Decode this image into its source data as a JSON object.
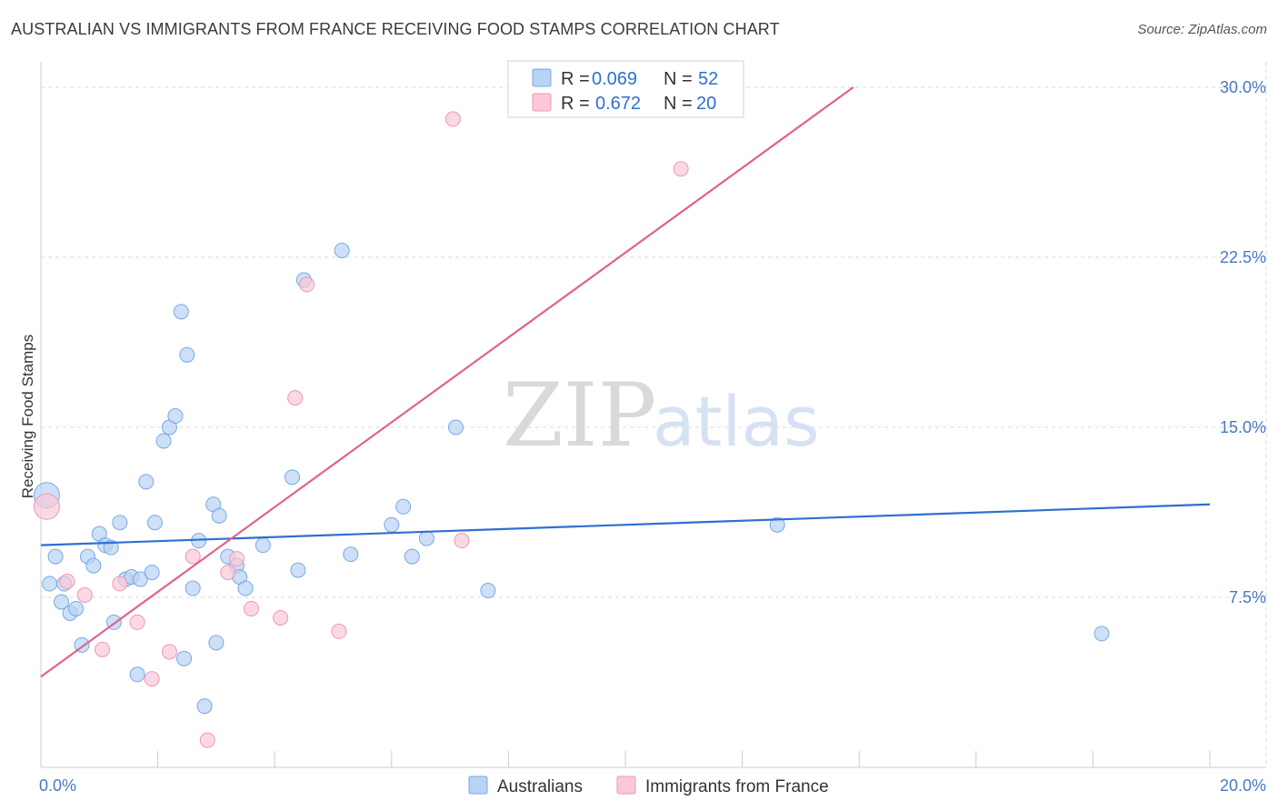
{
  "title": "AUSTRALIAN VS IMMIGRANTS FROM FRANCE RECEIVING FOOD STAMPS CORRELATION CHART",
  "source": "Source: ZipAtlas.com",
  "watermark": {
    "zip": "ZIP",
    "atlas": "atlas"
  },
  "colors": {
    "blue_fill": "#b8d3f5",
    "blue_stroke": "#7aa8e0",
    "blue_line": "#2e6fd4",
    "pink_fill": "#f9c9d8",
    "pink_stroke": "#ee97b3",
    "pink_line": "#e0628a",
    "grid": "#d8d8d8",
    "axis_text": "#4a78c4"
  },
  "legend": {
    "rows": [
      {
        "r_label": "R =",
        "r_value": "0.069",
        "n_label": "N =",
        "n_value": "52"
      },
      {
        "r_label": "R =",
        "r_value": "0.672",
        "n_label": "N =",
        "n_value": "20"
      }
    ]
  },
  "chart_data": {
    "type": "scatter",
    "ylabel": "Receiving Food Stamps",
    "xlim": [
      0,
      20
    ],
    "ylim": [
      0,
      30
    ],
    "x_ticks": [
      {
        "value": 0,
        "label": "0.0%"
      },
      {
        "value": 20,
        "label": "20.0%"
      }
    ],
    "y_ticks": [
      {
        "value": 7.5,
        "label": "7.5%"
      },
      {
        "value": 15,
        "label": "15.0%"
      },
      {
        "value": 22.5,
        "label": "22.5%"
      },
      {
        "value": 30,
        "label": "30.0%"
      }
    ],
    "series": [
      {
        "name": "Australians",
        "points": [
          [
            0.1,
            12.0
          ],
          [
            0.15,
            8.1
          ],
          [
            0.25,
            9.3
          ],
          [
            0.35,
            7.3
          ],
          [
            0.4,
            8.1
          ],
          [
            0.5,
            6.8
          ],
          [
            0.6,
            7.0
          ],
          [
            0.7,
            5.4
          ],
          [
            0.8,
            9.3
          ],
          [
            0.9,
            8.9
          ],
          [
            1.0,
            10.3
          ],
          [
            1.1,
            9.8
          ],
          [
            1.2,
            9.7
          ],
          [
            1.25,
            6.4
          ],
          [
            1.35,
            10.8
          ],
          [
            1.45,
            8.3
          ],
          [
            1.55,
            8.4
          ],
          [
            1.65,
            4.1
          ],
          [
            1.7,
            8.3
          ],
          [
            1.8,
            12.6
          ],
          [
            1.9,
            8.6
          ],
          [
            1.95,
            10.8
          ],
          [
            2.1,
            14.4
          ],
          [
            2.2,
            15.0
          ],
          [
            2.3,
            15.5
          ],
          [
            2.4,
            20.1
          ],
          [
            2.45,
            4.8
          ],
          [
            2.5,
            18.2
          ],
          [
            2.6,
            7.9
          ],
          [
            2.7,
            10.0
          ],
          [
            2.8,
            2.7
          ],
          [
            2.95,
            11.6
          ],
          [
            3.0,
            5.5
          ],
          [
            3.05,
            11.1
          ],
          [
            3.2,
            9.3
          ],
          [
            3.35,
            8.9
          ],
          [
            3.4,
            8.4
          ],
          [
            3.5,
            7.9
          ],
          [
            3.8,
            9.8
          ],
          [
            4.3,
            12.8
          ],
          [
            4.4,
            8.7
          ],
          [
            4.5,
            21.5
          ],
          [
            5.15,
            22.8
          ],
          [
            5.3,
            9.4
          ],
          [
            6.0,
            10.7
          ],
          [
            6.2,
            11.5
          ],
          [
            6.35,
            9.3
          ],
          [
            6.6,
            10.1
          ],
          [
            7.1,
            15.0
          ],
          [
            7.65,
            7.8
          ],
          [
            12.6,
            10.7
          ],
          [
            18.15,
            5.9
          ]
        ],
        "trend": {
          "x": [
            0,
            20
          ],
          "y": [
            9.8,
            11.6
          ]
        }
      },
      {
        "name": "Immigrants from France",
        "points": [
          [
            0.1,
            11.5
          ],
          [
            0.45,
            8.2
          ],
          [
            0.75,
            7.6
          ],
          [
            1.05,
            5.2
          ],
          [
            1.35,
            8.1
          ],
          [
            1.65,
            6.4
          ],
          [
            1.9,
            3.9
          ],
          [
            2.2,
            5.1
          ],
          [
            2.6,
            9.3
          ],
          [
            2.85,
            1.2
          ],
          [
            3.2,
            8.6
          ],
          [
            3.35,
            9.2
          ],
          [
            3.6,
            7.0
          ],
          [
            4.1,
            6.6
          ],
          [
            4.35,
            16.3
          ],
          [
            4.55,
            21.3
          ],
          [
            5.1,
            6.0
          ],
          [
            7.05,
            28.6
          ],
          [
            7.2,
            10.0
          ],
          [
            10.95,
            26.4
          ]
        ],
        "trend": {
          "x": [
            0,
            13.9
          ],
          "y": [
            4.0,
            30.0
          ]
        }
      }
    ]
  }
}
